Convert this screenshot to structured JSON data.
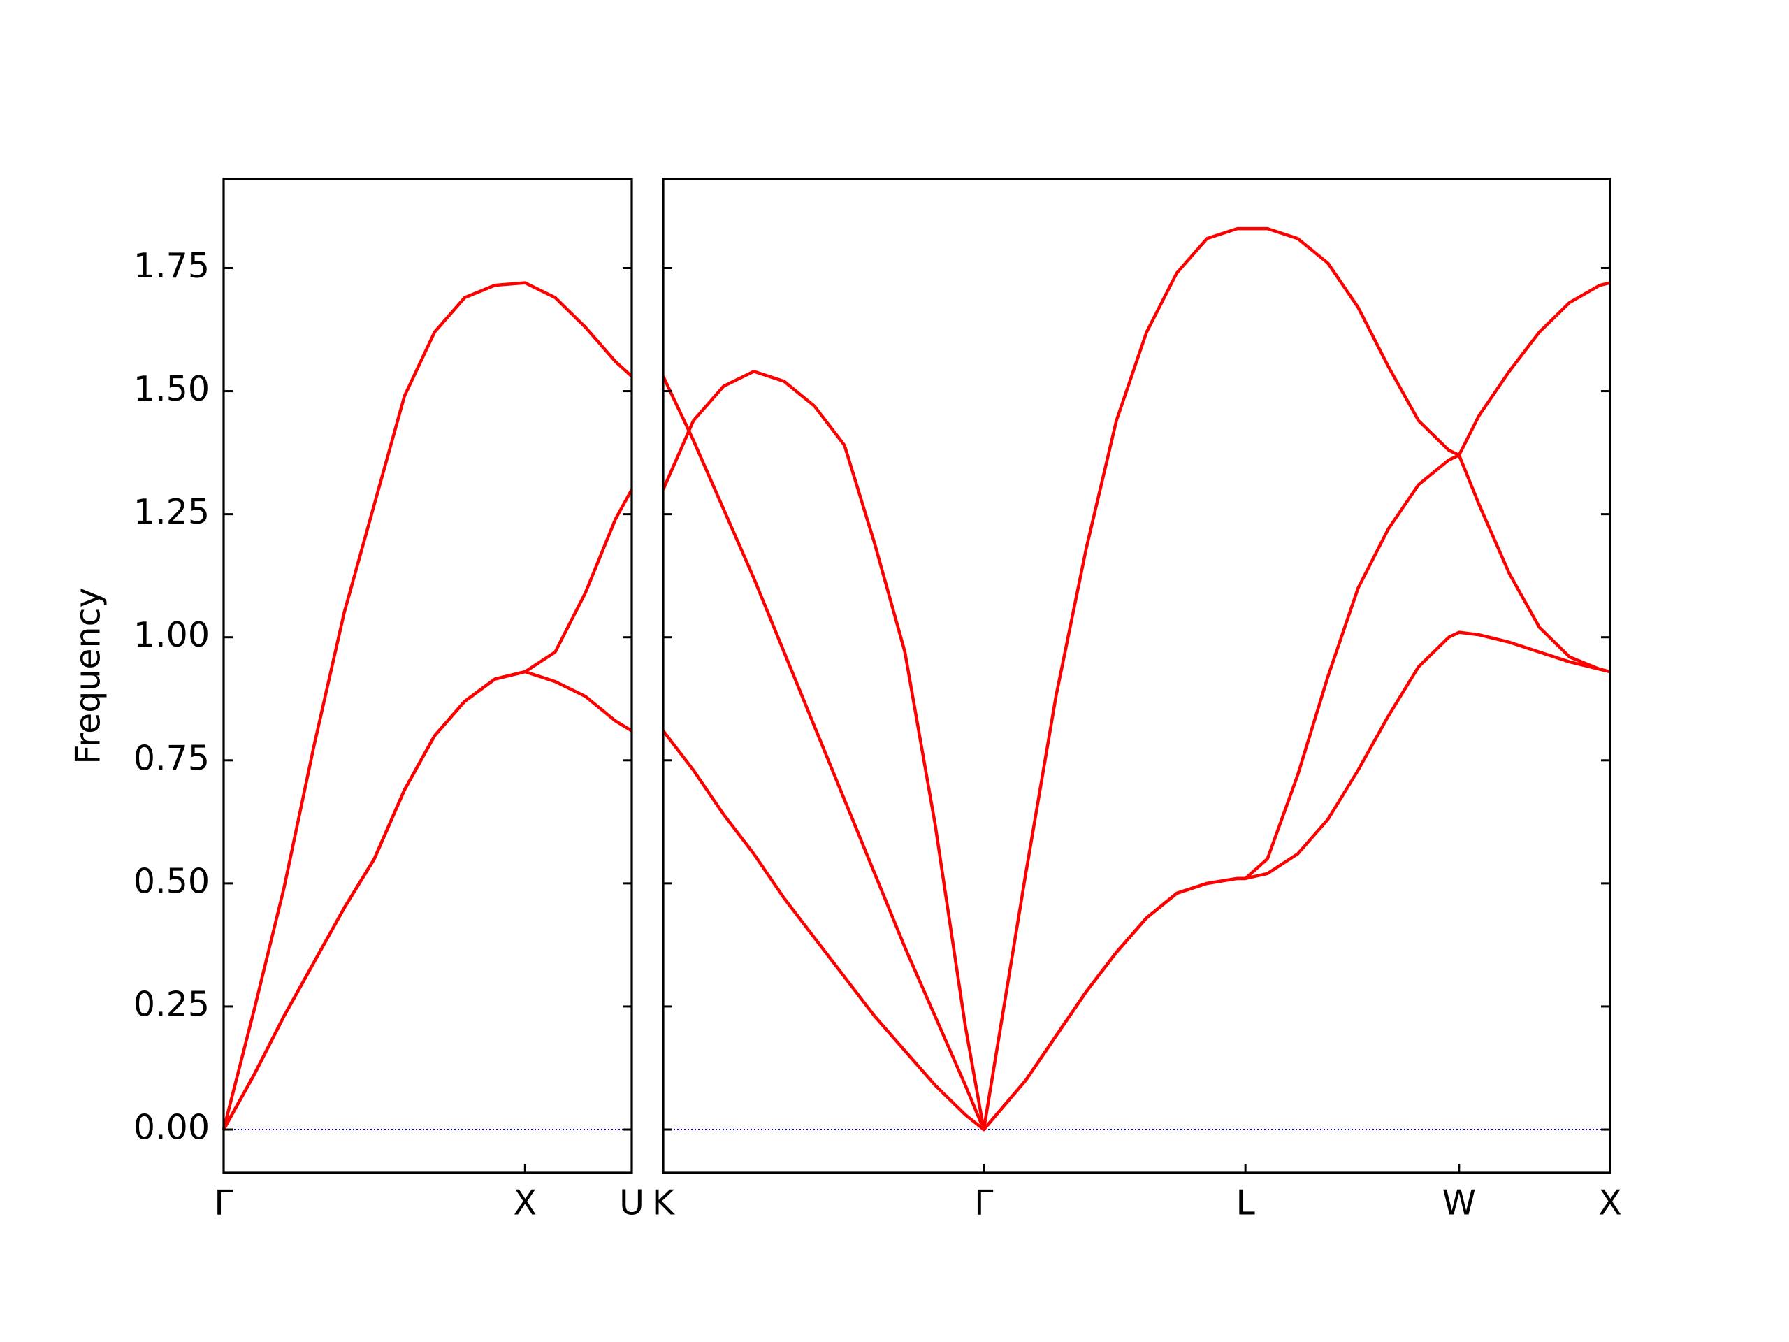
{
  "chart_data": [
    {
      "type": "line",
      "ylabel": "Frequency",
      "x": [
        0,
        0.1,
        0.2,
        0.3,
        0.4,
        0.5,
        0.6,
        0.7,
        0.8,
        0.9,
        1.0,
        1.1,
        1.2,
        1.3,
        1.354
      ],
      "series": [
        {
          "color": "#ff0000",
          "values": [
            0,
            0.24,
            0.49,
            0.78,
            1.05,
            1.27,
            1.49,
            1.62,
            1.69,
            1.715,
            1.72,
            1.69,
            1.63,
            1.56,
            1.53
          ]
        },
        {
          "color": "#ff0000",
          "values": [
            0,
            0.11,
            0.23,
            0.34,
            0.45,
            0.55,
            0.69,
            0.8,
            0.87,
            0.915,
            0.93,
            0.91,
            0.88,
            0.83,
            0.81
          ]
        },
        {
          "color": "#ff0000",
          "values": [
            0,
            0.11,
            0.23,
            0.34,
            0.45,
            0.55,
            0.69,
            0.8,
            0.87,
            0.915,
            0.93,
            0.97,
            1.09,
            1.24,
            1.3
          ]
        }
      ],
      "xlim": [
        0,
        1.354
      ],
      "xticks": [
        {
          "value": 0,
          "label": "Γ"
        },
        {
          "value": 1,
          "label": "X"
        },
        {
          "value": 1.354,
          "label": "U"
        }
      ],
      "ylim": [
        -0.088,
        1.931
      ],
      "yticks": [
        {
          "value": 0,
          "label": "0.00"
        },
        {
          "value": 0.25,
          "label": "0.25"
        },
        {
          "value": 0.5,
          "label": "0.50"
        },
        {
          "value": 0.75,
          "label": "0.75"
        },
        {
          "value": 1,
          "label": "1.00"
        },
        {
          "value": 1.25,
          "label": "1.25"
        },
        {
          "value": 1.5,
          "label": "1.50"
        },
        {
          "value": 1.75,
          "label": "1.75"
        }
      ],
      "hlines": [
        {
          "y": 0,
          "color": "#0000cd",
          "style": "dotted"
        }
      ]
    },
    {
      "type": "line",
      "x": [
        0,
        0.1,
        0.2,
        0.3,
        0.4,
        0.5,
        0.6,
        0.7,
        0.8,
        0.9,
        1.0,
        1.061,
        1.2,
        1.3,
        1.4,
        1.5,
        1.6,
        1.7,
        1.8,
        1.9,
        1.927,
        2.0,
        2.1,
        2.2,
        2.3,
        2.4,
        2.5,
        2.6,
        2.634,
        2.7,
        2.8,
        2.9,
        3.0,
        3.1,
        3.134
      ],
      "series": [
        {
          "color": "#ff0000",
          "values": [
            1.3,
            1.44,
            1.51,
            1.54,
            1.52,
            1.47,
            1.39,
            1.19,
            0.97,
            0.62,
            0.21,
            0,
            0.52,
            0.88,
            1.18,
            1.44,
            1.62,
            1.74,
            1.81,
            1.83,
            1.83,
            1.83,
            1.81,
            1.76,
            1.67,
            1.55,
            1.44,
            1.38,
            1.37,
            1.27,
            1.13,
            1.02,
            0.96,
            0.935,
            0.93
          ]
        },
        {
          "color": "#ff0000",
          "values": [
            1.53,
            1.4,
            1.26,
            1.12,
            0.97,
            0.82,
            0.67,
            0.52,
            0.37,
            0.23,
            0.09,
            0,
            0.1,
            0.19,
            0.28,
            0.36,
            0.43,
            0.48,
            0.5,
            0.51,
            0.51,
            0.55,
            0.72,
            0.92,
            1.1,
            1.22,
            1.31,
            1.36,
            1.37,
            1.45,
            1.54,
            1.62,
            1.68,
            1.715,
            1.72
          ]
        },
        {
          "color": "#ff0000",
          "values": [
            0.81,
            0.73,
            0.64,
            0.56,
            0.47,
            0.39,
            0.31,
            0.23,
            0.16,
            0.09,
            0.03,
            0,
            0.1,
            0.19,
            0.28,
            0.36,
            0.43,
            0.48,
            0.5,
            0.51,
            0.51,
            0.52,
            0.56,
            0.63,
            0.73,
            0.84,
            0.94,
            1.0,
            1.01,
            1.005,
            0.99,
            0.97,
            0.95,
            0.935,
            0.93
          ]
        }
      ],
      "xlim": [
        0,
        3.134
      ],
      "xticks": [
        {
          "value": 0,
          "label": "K"
        },
        {
          "value": 1.061,
          "label": "Γ"
        },
        {
          "value": 1.927,
          "label": "L"
        },
        {
          "value": 2.634,
          "label": "W"
        },
        {
          "value": 3.134,
          "label": "X"
        }
      ],
      "ylim": [
        -0.088,
        1.931
      ],
      "yticks": [
        0,
        0.25,
        0.5,
        0.75,
        1,
        1.25,
        1.5,
        1.75
      ],
      "hlines": [
        {
          "y": 0,
          "color": "#0000cd",
          "style": "dotted"
        }
      ]
    }
  ]
}
